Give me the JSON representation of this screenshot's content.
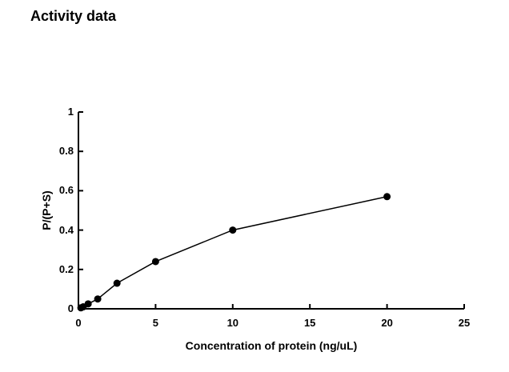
{
  "page": {
    "title": "Activity data"
  },
  "chart_data": {
    "type": "line",
    "title": "Activity data",
    "xlabel": "Concentration of protein (ng/uL)",
    "ylabel": "P/(P+S)",
    "xlim": [
      0,
      25
    ],
    "ylim": [
      0,
      1
    ],
    "x_ticks": [
      0,
      5,
      10,
      15,
      20,
      25
    ],
    "x_tick_labels": [
      "0",
      "5",
      "10",
      "15",
      "20",
      "25"
    ],
    "y_ticks": [
      0,
      0.2,
      0.4,
      0.6,
      0.8,
      1
    ],
    "y_tick_labels": [
      "0",
      "0.2",
      "0.4",
      "0.6",
      "0.8",
      "1"
    ],
    "grid": false,
    "legend": "none",
    "tick_style": "inside",
    "marker": "filled-circle",
    "line_color": "#000000",
    "marker_color": "#000000",
    "axis_color": "#000000",
    "background_color": "#ffffff",
    "series": [
      {
        "name": "Activity",
        "x": [
          0.16,
          0.31,
          0.63,
          1.25,
          2.5,
          5,
          10,
          20
        ],
        "y": [
          0.005,
          0.01,
          0.025,
          0.05,
          0.13,
          0.24,
          0.4,
          0.57
        ]
      }
    ]
  }
}
